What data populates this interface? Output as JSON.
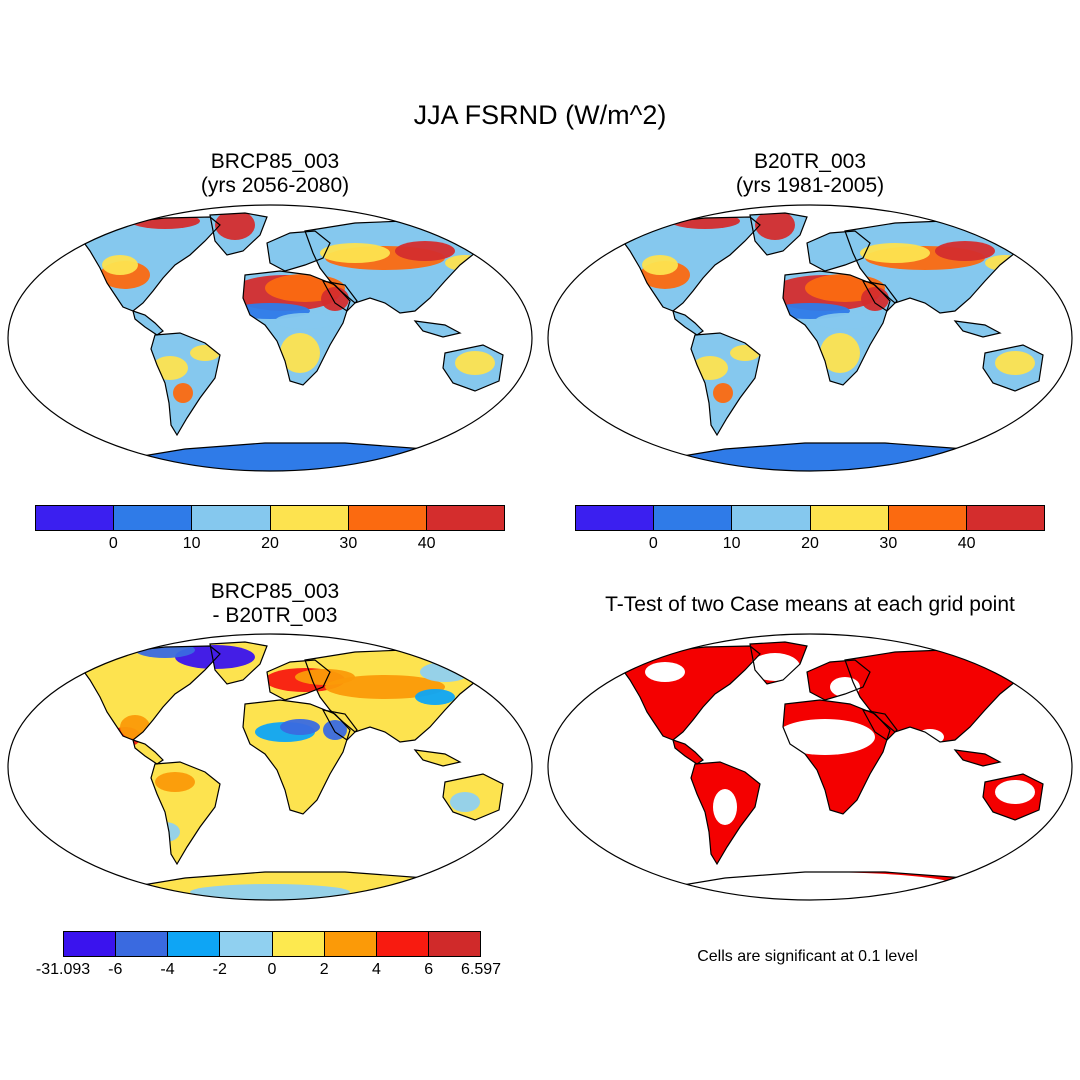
{
  "main_title": "JJA FSRND (W/m^2)",
  "panels": [
    {
      "title_line1": "BRCP85_003",
      "title_line2": "(yrs 2056-2080)"
    },
    {
      "title_line1": "B20TR_003",
      "title_line2": "(yrs 1981-2005)"
    },
    {
      "title_line1": "BRCP85_003",
      "title_line2": "- B20TR_003"
    },
    {
      "title_line1": "T-Test of two Case means at each grid point",
      "title_line2": ""
    }
  ],
  "colorbar_top": {
    "colors": [
      "#3b1ff0",
      "#2f7be8",
      "#85c8ee",
      "#fde34f",
      "#fb6a10",
      "#d42d2d"
    ],
    "labels": [
      "0",
      "10",
      "20",
      "30",
      "40"
    ]
  },
  "colorbar_bottom": {
    "colors": [
      "#3a13ee",
      "#3a6ae0",
      "#0ea5f5",
      "#90d0f0",
      "#fde94f",
      "#fb9a08",
      "#f81b10",
      "#d02a2a"
    ],
    "labels": [
      "-31.093",
      "-6",
      "-4",
      "-2",
      "0",
      "2",
      "4",
      "6",
      "6.597"
    ]
  },
  "ttest_note": "Cells are significant at 0.1 level",
  "map_colors": {
    "ocean": "#ffffff",
    "land_base_abs": "#85c8ee",
    "land_base_diff": "#fde34f",
    "significant": "#f40000"
  }
}
